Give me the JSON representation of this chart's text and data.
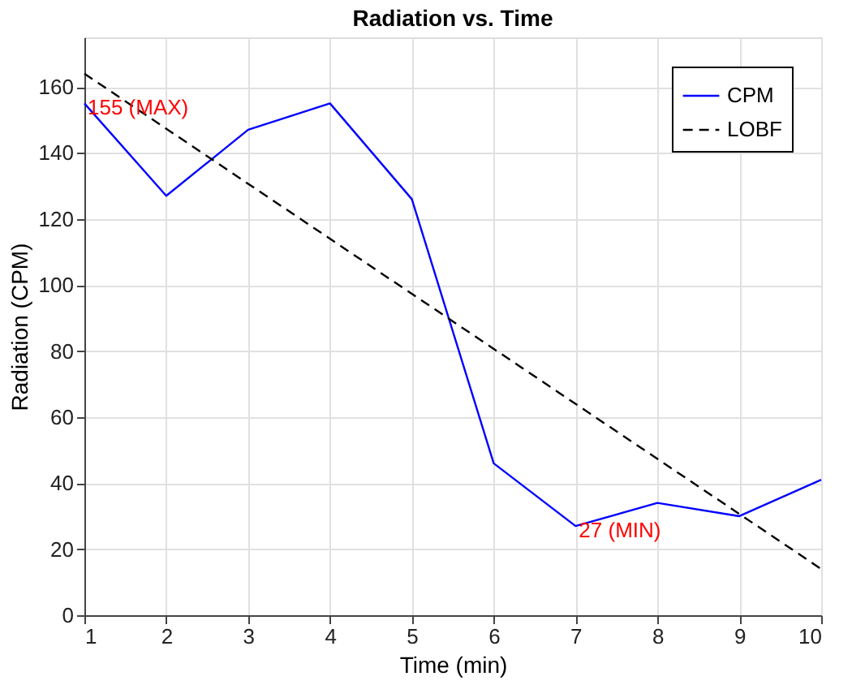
{
  "chart_data": {
    "type": "line",
    "title": "Radiation vs. Time",
    "xlabel": "Time (min)",
    "ylabel": "Radiation (CPM)",
    "x": [
      1,
      2,
      3,
      4,
      5,
      6,
      7,
      8,
      9,
      10
    ],
    "series": [
      {
        "name": "CPM",
        "color": "#0000ff",
        "line_style": "solid",
        "values": [
          155,
          127,
          147,
          155,
          126,
          46,
          27,
          34,
          30,
          41
        ]
      },
      {
        "name": "LOBF",
        "color": "#000000",
        "line_style": "dashed",
        "x": [
          1,
          10
        ],
        "values": [
          164,
          14
        ]
      }
    ],
    "annotations": [
      {
        "text": "155 (MAX)",
        "x": 1,
        "y": 155
      },
      {
        "text": "27 (MIN)",
        "x": 7,
        "y": 27
      }
    ],
    "xlim": [
      1,
      10
    ],
    "ylim": [
      0,
      175
    ],
    "xticks": [
      1,
      2,
      3,
      4,
      5,
      6,
      7,
      8,
      9,
      10
    ],
    "yticks": [
      0,
      20,
      40,
      60,
      80,
      100,
      120,
      140,
      160
    ],
    "grid": true,
    "legend": "top right",
    "marker": "none"
  }
}
